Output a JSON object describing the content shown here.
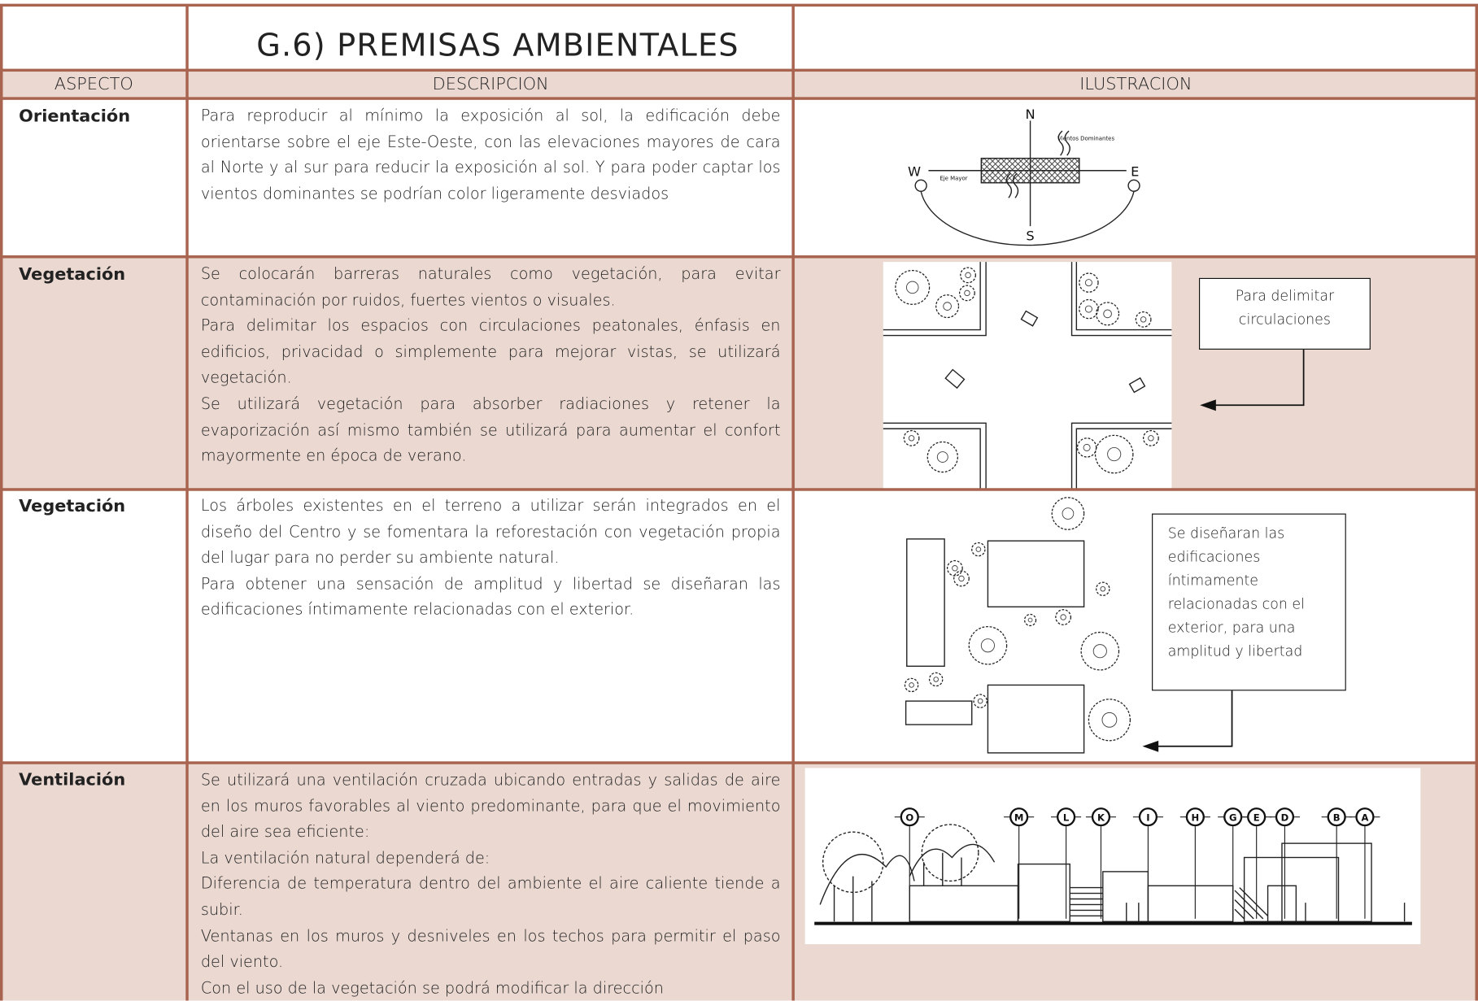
{
  "header": {
    "title": "G.6) PREMISAS AMBIENTALES"
  },
  "table": {
    "headers": [
      "ASPECTO",
      "DESCRIPCION",
      "ILUSTRACION"
    ],
    "rows": [
      {
        "aspect": "Orientación",
        "description": [
          "Para reproducir al mínimo la exposición al sol, la edificación debe orientarse sobre el eje Este-Oeste, con las elevaciones mayores de cara al Norte y al sur para reducir la exposición al sol. Y para poder captar los vientos dominantes se podrían color ligeramente desviados"
        ],
        "illustration": {
          "north": "N",
          "south": "S",
          "west": "W",
          "east": "E",
          "wind_label": "Vientos Dominantes",
          "axis_label": "Eje Mayor"
        }
      },
      {
        "aspect": "Vegetación",
        "description": [
          "Se colocarán barreras naturales como vegetación, para evitar contaminación por ruidos, fuertes vientos o visuales.",
          "Para delimitar los espacios con circulaciones peatonales, énfasis en edificios, privacidad o simplemente para mejorar vistas, se utilizará vegetación.",
          "Se utilizará vegetación para absorber radiaciones y retener la evaporización así mismo también se utilizará para aumentar el confort mayormente en época de verano."
        ],
        "illustration": {
          "callout": "Para delimitar circulaciones"
        }
      },
      {
        "aspect": "Vegetación",
        "description": [
          "Los árboles existentes en el terreno a utilizar serán integrados en el diseño del Centro y se fomentara la reforestación con vegetación propia del lugar para no perder su ambiente natural.",
          "Para obtener una sensación de amplitud y libertad se diseñaran las edificaciones íntimamente relacionadas con el exterior."
        ],
        "illustration": {
          "callout": "Se diseñaran las edificaciones íntimamente relacionadas con el exterior, para una amplitud y libertad"
        }
      },
      {
        "aspect": "Ventilación",
        "description": [
          "Se utilizará una ventilación cruzada ubicando entradas y salidas de aire en los muros favorables al viento predominante, para que el movimiento del aire sea eficiente:",
          "La ventilación natural dependerá de:",
          "Diferencia de temperatura dentro del ambiente el aire caliente tiende a subir.",
          "Ventanas en los  muros y desniveles en los techos para permitir el paso del viento.",
          "Con el uso de la vegetación se podrá modificar la dirección"
        ],
        "illustration": {
          "grid_labels": [
            "O",
            "M",
            "L",
            "K",
            "I",
            "H",
            "G",
            "E",
            "D",
            "B",
            "A"
          ]
        }
      }
    ]
  }
}
